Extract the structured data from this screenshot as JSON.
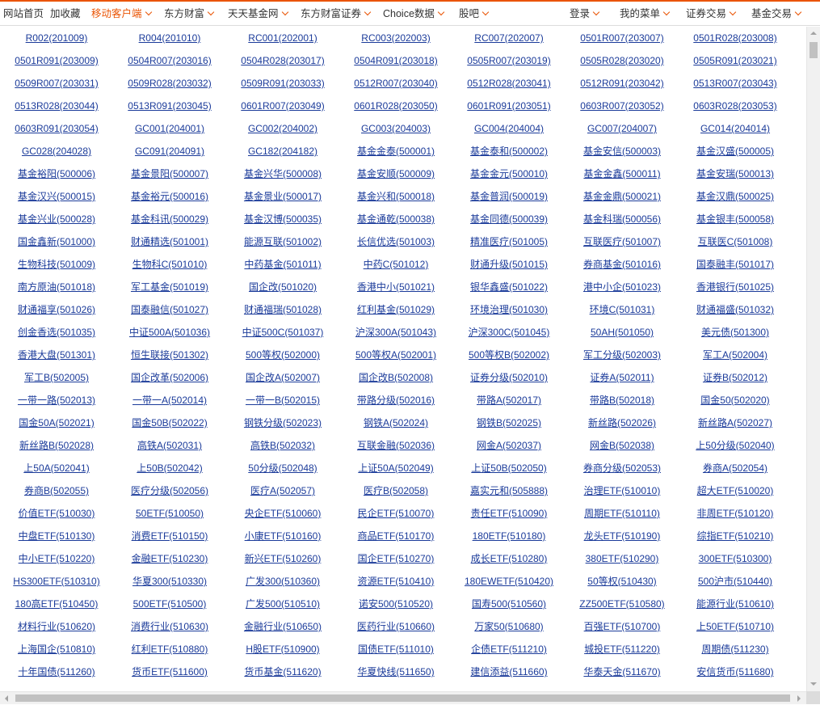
{
  "nav": {
    "left": [
      {
        "label": "网站首页",
        "dropdown": false,
        "hot": false
      },
      {
        "label": "加收藏",
        "dropdown": false,
        "hot": false
      },
      {
        "label": "移动客户端",
        "dropdown": true,
        "hot": true
      },
      {
        "label": "东方财富",
        "dropdown": true,
        "hot": false
      },
      {
        "label": "天天基金网",
        "dropdown": true,
        "hot": false
      },
      {
        "label": "东方财富证券",
        "dropdown": true,
        "hot": false
      },
      {
        "label": "Choice数据",
        "dropdown": true,
        "hot": false
      },
      {
        "label": "股吧",
        "dropdown": true,
        "hot": false
      }
    ],
    "right": [
      {
        "label": "登录",
        "dropdown": true
      },
      {
        "label": "我的菜单",
        "dropdown": true
      },
      {
        "label": "证券交易",
        "dropdown": true
      },
      {
        "label": "基金交易",
        "dropdown": true
      }
    ]
  },
  "accent_color": "#ea5404",
  "link_color": "#1b3b9a",
  "rows": [
    [
      "R002(201009)",
      "R004(201010)",
      "RC001(202001)",
      "RC003(202003)",
      "RC007(202007)",
      "0501R007(203007)",
      "0501R028(203008)"
    ],
    [
      "0501R091(203009)",
      "0504R007(203016)",
      "0504R028(203017)",
      "0504R091(203018)",
      "0505R007(203019)",
      "0505R028(203020)",
      "0505R091(203021)"
    ],
    [
      "0509R007(203031)",
      "0509R028(203032)",
      "0509R091(203033)",
      "0512R007(203040)",
      "0512R028(203041)",
      "0512R091(203042)",
      "0513R007(203043)"
    ],
    [
      "0513R028(203044)",
      "0513R091(203045)",
      "0601R007(203049)",
      "0601R028(203050)",
      "0601R091(203051)",
      "0603R007(203052)",
      "0603R028(203053)"
    ],
    [
      "0603R091(203054)",
      "GC001(204001)",
      "GC002(204002)",
      "GC003(204003)",
      "GC004(204004)",
      "GC007(204007)",
      "GC014(204014)"
    ],
    [
      "GC028(204028)",
      "GC091(204091)",
      "GC182(204182)",
      "基金金泰(500001)",
      "基金泰和(500002)",
      "基金安信(500003)",
      "基金汉盛(500005)"
    ],
    [
      "基金裕阳(500006)",
      "基金景阳(500007)",
      "基金兴华(500008)",
      "基金安顺(500009)",
      "基金金元(500010)",
      "基金金鑫(500011)",
      "基金安瑞(500013)"
    ],
    [
      "基金汉兴(500015)",
      "基金裕元(500016)",
      "基金景业(500017)",
      "基金兴和(500018)",
      "基金普润(500019)",
      "基金金鼎(500021)",
      "基金汉鼎(500025)"
    ],
    [
      "基金兴业(500028)",
      "基金科讯(500029)",
      "基金汉博(500035)",
      "基金通乾(500038)",
      "基金同德(500039)",
      "基金科瑞(500056)",
      "基金银丰(500058)"
    ],
    [
      "国金鑫新(501000)",
      "财通精选(501001)",
      "能源互联(501002)",
      "长信优选(501003)",
      "精准医疗(501005)",
      "互联医疗(501007)",
      "互联医C(501008)"
    ],
    [
      "生物科技(501009)",
      "生物科C(501010)",
      "中药基金(501011)",
      "中药C(501012)",
      "财通升级(501015)",
      "券商基金(501016)",
      "国泰融丰(501017)"
    ],
    [
      "南方原油(501018)",
      "军工基金(501019)",
      "国企改(501020)",
      "香港中小(501021)",
      "银华鑫盛(501022)",
      "港中小企(501023)",
      "香港银行(501025)"
    ],
    [
      "财通福享(501026)",
      "国泰融信(501027)",
      "财通福瑞(501028)",
      "红利基金(501029)",
      "环境治理(501030)",
      "环境C(501031)",
      "财通福盛(501032)"
    ],
    [
      "创金香选(501035)",
      "中证500A(501036)",
      "中证500C(501037)",
      "沪深300A(501043)",
      "沪深300C(501045)",
      "50AH(501050)",
      "美元债(501300)"
    ],
    [
      "香港大盘(501301)",
      "恒生联接(501302)",
      "500等权(502000)",
      "500等权A(502001)",
      "500等权B(502002)",
      "军工分级(502003)",
      "军工A(502004)"
    ],
    [
      "军工B(502005)",
      "国企改革(502006)",
      "国企改A(502007)",
      "国企改B(502008)",
      "证券分级(502010)",
      "证券A(502011)",
      "证券B(502012)"
    ],
    [
      "一带一路(502013)",
      "一带一A(502014)",
      "一带一B(502015)",
      "带路分级(502016)",
      "带路A(502017)",
      "带路B(502018)",
      "国金50(502020)"
    ],
    [
      "国金50A(502021)",
      "国金50B(502022)",
      "钢铁分级(502023)",
      "钢铁A(502024)",
      "钢铁B(502025)",
      "新丝路(502026)",
      "新丝路A(502027)"
    ],
    [
      "新丝路B(502028)",
      "高铁A(502031)",
      "高铁B(502032)",
      "互联金融(502036)",
      "网金A(502037)",
      "网金B(502038)",
      "上50分级(502040)"
    ],
    [
      "上50A(502041)",
      "上50B(502042)",
      "50分级(502048)",
      "上证50A(502049)",
      "上证50B(502050)",
      "券商分级(502053)",
      "券商A(502054)"
    ],
    [
      "券商B(502055)",
      "医疗分级(502056)",
      "医疗A(502057)",
      "医疗B(502058)",
      "嘉实元和(505888)",
      "治理ETF(510010)",
      "超大ETF(510020)"
    ],
    [
      "价值ETF(510030)",
      "50ETF(510050)",
      "央企ETF(510060)",
      "民企ETF(510070)",
      "责任ETF(510090)",
      "周期ETF(510110)",
      "非周ETF(510120)"
    ],
    [
      "中盘ETF(510130)",
      "消费ETF(510150)",
      "小康ETF(510160)",
      "商品ETF(510170)",
      "180ETF(510180)",
      "龙头ETF(510190)",
      "综指ETF(510210)"
    ],
    [
      "中小ETF(510220)",
      "金融ETF(510230)",
      "新兴ETF(510260)",
      "国企ETF(510270)",
      "成长ETF(510280)",
      "380ETF(510290)",
      "300ETF(510300)"
    ],
    [
      "HS300ETF(510310)",
      "华夏300(510330)",
      "广发300(510360)",
      "资源ETF(510410)",
      "180EWETF(510420)",
      "50等权(510430)",
      "500沪市(510440)"
    ],
    [
      "180高ETF(510450)",
      "500ETF(510500)",
      "广发500(510510)",
      "诺安500(510520)",
      "国寿500(510560)",
      "ZZ500ETF(510580)",
      "能源行业(510610)"
    ],
    [
      "材料行业(510620)",
      "消费行业(510630)",
      "金融行业(510650)",
      "医药行业(510660)",
      "万家50(510680)",
      "百强ETF(510700)",
      "上50ETF(510710)"
    ],
    [
      "上海国企(510810)",
      "红利ETF(510880)",
      "H股ETF(510900)",
      "国债ETF(511010)",
      "企债ETF(511210)",
      "城投ETF(511220)",
      "周期债(511230)"
    ],
    [
      "十年国债(511260)",
      "货币ETF(511600)",
      "货币基金(511620)",
      "华夏快线(511650)",
      "建信添益(511660)",
      "华泰天金(511670)",
      "安信货币(511680)"
    ]
  ]
}
